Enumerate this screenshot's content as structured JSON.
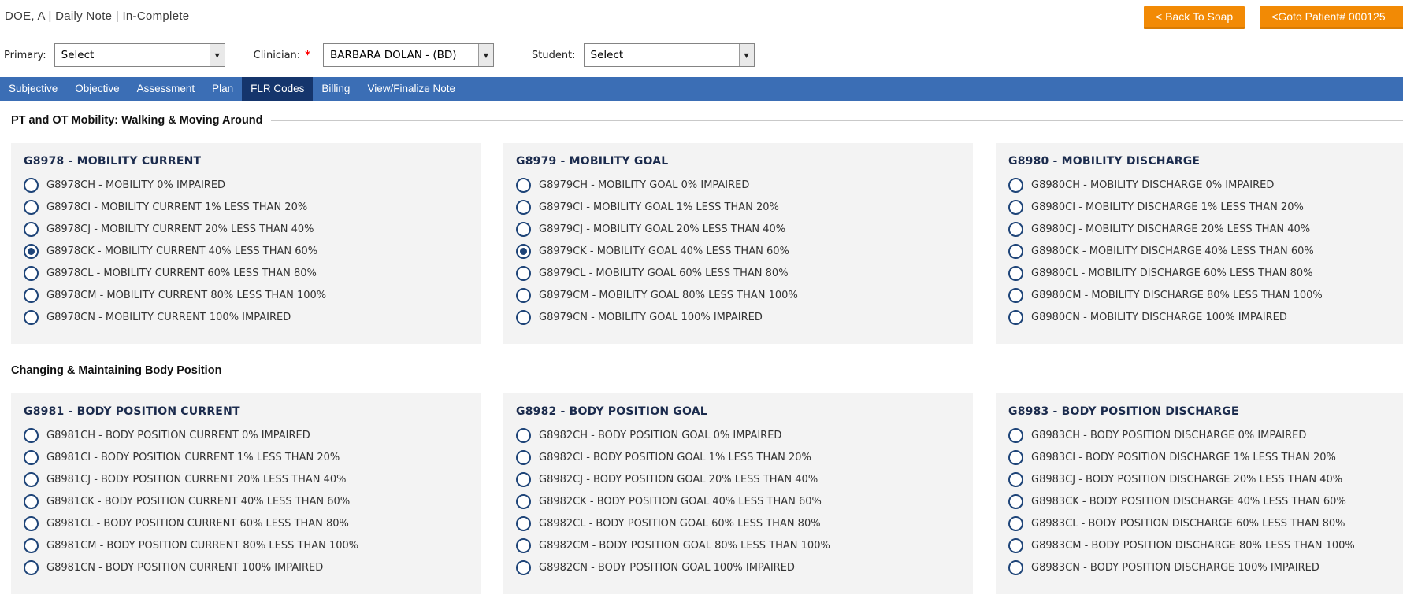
{
  "header": {
    "title": "DOE, A | Daily Note | In-Complete",
    "back_button_label": "< Back To Soap",
    "goto_button_label": "<Goto Patient# 000125"
  },
  "form": {
    "primary": {
      "label": "Primary:",
      "value": "Select"
    },
    "clinician": {
      "label": "Clinician:",
      "required_mark": "*",
      "value": "BARBARA DOLAN - (BD)"
    },
    "student": {
      "label": "Student:",
      "value": "Select"
    }
  },
  "tabs": [
    {
      "label": "Subjective",
      "active": false
    },
    {
      "label": "Objective",
      "active": false
    },
    {
      "label": "Assessment",
      "active": false
    },
    {
      "label": "Plan",
      "active": false
    },
    {
      "label": "FLR Codes",
      "active": true
    },
    {
      "label": "Billing",
      "active": false
    },
    {
      "label": "View/Finalize Note",
      "active": false
    }
  ],
  "sections": [
    {
      "heading": "PT and OT Mobility: Walking & Moving Around",
      "panels": [
        {
          "code": "G8978",
          "title": "G8978 - MOBILITY CURRENT",
          "options": [
            {
              "label": "G8978CH - MOBILITY 0% IMPAIRED",
              "selected": false
            },
            {
              "label": "G8978CI - MOBILITY CURRENT 1% LESS THAN 20%",
              "selected": false
            },
            {
              "label": "G8978CJ - MOBILITY CURRENT 20% LESS THAN 40%",
              "selected": false
            },
            {
              "label": "G8978CK - MOBILITY CURRENT 40% LESS THAN 60%",
              "selected": true
            },
            {
              "label": "G8978CL - MOBILITY CURRENT 60% LESS THAN 80%",
              "selected": false
            },
            {
              "label": "G8978CM - MOBILITY CURRENT 80% LESS THAN 100%",
              "selected": false
            },
            {
              "label": "G8978CN - MOBILITY CURRENT 100% IMPAIRED",
              "selected": false
            }
          ]
        },
        {
          "code": "G8979",
          "title": "G8979 - MOBILITY GOAL",
          "options": [
            {
              "label": "G8979CH - MOBILITY GOAL 0% IMPAIRED",
              "selected": false
            },
            {
              "label": "G8979CI - MOBILITY GOAL 1% LESS THAN 20%",
              "selected": false
            },
            {
              "label": "G8979CJ - MOBILITY GOAL 20% LESS THAN 40%",
              "selected": false
            },
            {
              "label": "G8979CK - MOBILITY GOAL 40% LESS THAN 60%",
              "selected": true
            },
            {
              "label": "G8979CL - MOBILITY GOAL 60% LESS THAN 80%",
              "selected": false
            },
            {
              "label": "G8979CM - MOBILITY GOAL 80% LESS THAN 100%",
              "selected": false
            },
            {
              "label": "G8979CN - MOBILITY GOAL 100% IMPAIRED",
              "selected": false
            }
          ]
        },
        {
          "code": "G8980",
          "title": "G8980 - MOBILITY DISCHARGE",
          "options": [
            {
              "label": "G8980CH - MOBILITY DISCHARGE 0% IMPAIRED",
              "selected": false
            },
            {
              "label": "G8980CI - MOBILITY DISCHARGE 1% LESS THAN 20%",
              "selected": false
            },
            {
              "label": "G8980CJ - MOBILITY DISCHARGE 20% LESS THAN 40%",
              "selected": false
            },
            {
              "label": "G8980CK - MOBILITY DISCHARGE 40% LESS THAN 60%",
              "selected": false
            },
            {
              "label": "G8980CL - MOBILITY DISCHARGE 60% LESS THAN 80%",
              "selected": false
            },
            {
              "label": "G8980CM - MOBILITY DISCHARGE 80% LESS THAN 100%",
              "selected": false
            },
            {
              "label": "G8980CN - MOBILITY DISCHARGE 100% IMPAIRED",
              "selected": false
            }
          ]
        }
      ]
    },
    {
      "heading": "Changing & Maintaining Body Position",
      "panels": [
        {
          "code": "G8981",
          "title": "G8981 - BODY POSITION CURRENT",
          "options": [
            {
              "label": "G8981CH - BODY POSITION CURRENT 0% IMPAIRED",
              "selected": false
            },
            {
              "label": "G8981CI - BODY POSITION CURRENT 1% LESS THAN 20%",
              "selected": false
            },
            {
              "label": "G8981CJ - BODY POSITION CURRENT 20% LESS THAN 40%",
              "selected": false
            },
            {
              "label": "G8981CK - BODY POSITION CURRENT 40% LESS THAN 60%",
              "selected": false
            },
            {
              "label": "G8981CL - BODY POSITION CURRENT 60% LESS THAN 80%",
              "selected": false
            },
            {
              "label": "G8981CM - BODY POSITION CURRENT 80% LESS THAN 100%",
              "selected": false
            },
            {
              "label": "G8981CN - BODY POSITION CURRENT 100% IMPAIRED",
              "selected": false
            }
          ]
        },
        {
          "code": "G8982",
          "title": "G8982 - BODY POSITION GOAL",
          "options": [
            {
              "label": "G8982CH - BODY POSITION GOAL 0% IMPAIRED",
              "selected": false
            },
            {
              "label": "G8982CI - BODY POSITION GOAL 1% LESS THAN 20%",
              "selected": false
            },
            {
              "label": "G8982CJ - BODY POSITION GOAL 20% LESS THAN 40%",
              "selected": false
            },
            {
              "label": "G8982CK - BODY POSITION GOAL 40% LESS THAN 60%",
              "selected": false
            },
            {
              "label": "G8982CL - BODY POSITION GOAL 60% LESS THAN 80%",
              "selected": false
            },
            {
              "label": "G8982CM - BODY POSITION GOAL 80% LESS THAN 100%",
              "selected": false
            },
            {
              "label": "G8982CN - BODY POSITION GOAL 100% IMPAIRED",
              "selected": false
            }
          ]
        },
        {
          "code": "G8983",
          "title": "G8983 - BODY POSITION DISCHARGE",
          "options": [
            {
              "label": "G8983CH - BODY POSITION DISCHARGE 0% IMPAIRED",
              "selected": false
            },
            {
              "label": "G8983CI - BODY POSITION DISCHARGE 1% LESS THAN 20%",
              "selected": false
            },
            {
              "label": "G8983CJ - BODY POSITION DISCHARGE 20% LESS THAN 40%",
              "selected": false
            },
            {
              "label": "G8983CK - BODY POSITION DISCHARGE 40% LESS THAN 60%",
              "selected": false
            },
            {
              "label": "G8983CL - BODY POSITION DISCHARGE 60% LESS THAN 80%",
              "selected": false
            },
            {
              "label": "G8983CM - BODY POSITION DISCHARGE 80% LESS THAN 100%",
              "selected": false
            },
            {
              "label": "G8983CN - BODY POSITION DISCHARGE 100% IMPAIRED",
              "selected": false
            }
          ]
        }
      ]
    }
  ],
  "icons": {
    "dropdown_arrow": "▼"
  },
  "colors": {
    "accent_orange": "#F28A05",
    "accent_orange_shadow": "#D97C04",
    "tab_bar_blue": "#3B6EB5",
    "active_tab_navy": "#15356C",
    "radio_navy": "#1E4478",
    "panel_background": "#F3F3F3",
    "required_red": "#FF0000"
  }
}
